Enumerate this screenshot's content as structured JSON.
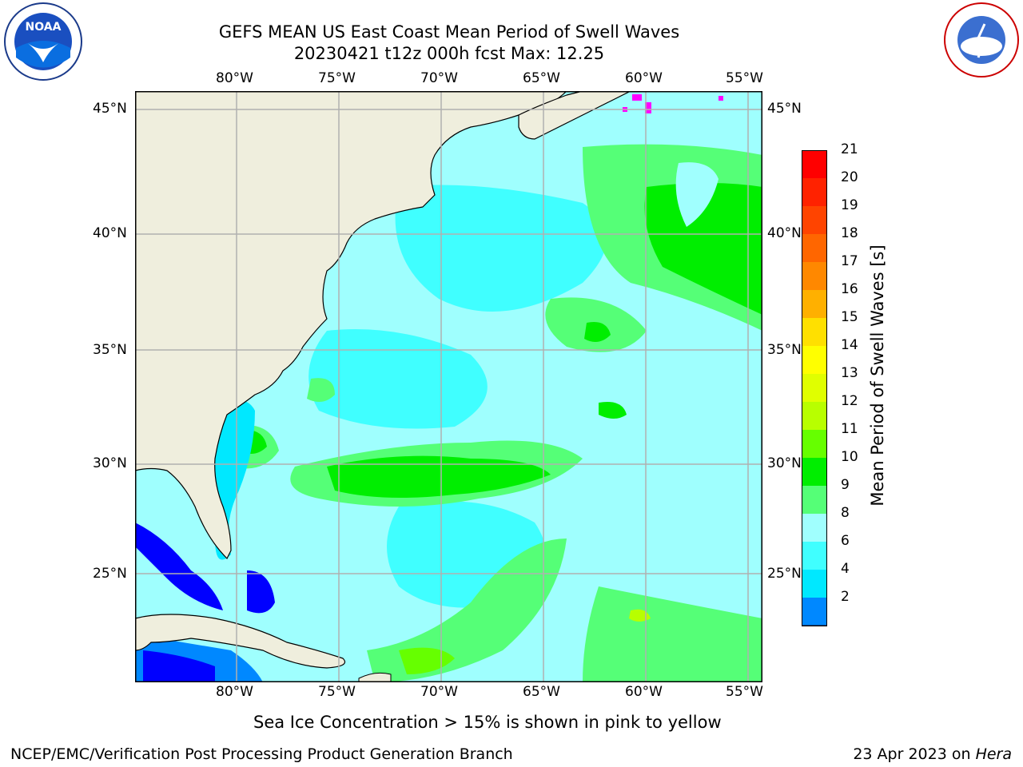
{
  "title": {
    "line1": "GEFS MEAN US East Coast Mean Period of Swell Waves",
    "line2": "20230421 t12z 000h fcst   Max: 12.25"
  },
  "map": {
    "lon_ticks": [
      "80°W",
      "75°W",
      "70°W",
      "65°W",
      "60°W",
      "55°W"
    ],
    "lat_ticks": [
      "45°N",
      "40°N",
      "35°N",
      "30°N",
      "25°N"
    ],
    "colors": {
      "land": "#efeedd",
      "ocean_base": "#9ffffe",
      "grid": "#b0b0b0"
    }
  },
  "colorbar": {
    "label": "Mean Period of Swell Waves [s]",
    "levels": [
      "21",
      "20",
      "19",
      "18",
      "17",
      "16",
      "15",
      "14",
      "13",
      "12",
      "11",
      "10",
      "9",
      "8",
      "6",
      "4",
      "2"
    ],
    "colors": [
      "#ff0000",
      "#ff2200",
      "#ff4400",
      "#ff6600",
      "#ff8800",
      "#ffb000",
      "#ffe000",
      "#ffff00",
      "#e0ff00",
      "#b8ff00",
      "#66ff00",
      "#00ee00",
      "#55ff77",
      "#a0fffe",
      "#40ffff",
      "#00e8ff",
      "#0088ff",
      "#0000ff"
    ]
  },
  "note": "Sea Ice Concentration > 15% is shown in pink to yellow",
  "footer": {
    "left": "NCEP/EMC/Verification Post Processing Product Generation Branch",
    "date": "23 Apr 2023 on ",
    "machine": "Hera"
  },
  "logos": {
    "noaa": "NOAA",
    "nws": "NATIONAL WEATHER SERVICE"
  }
}
